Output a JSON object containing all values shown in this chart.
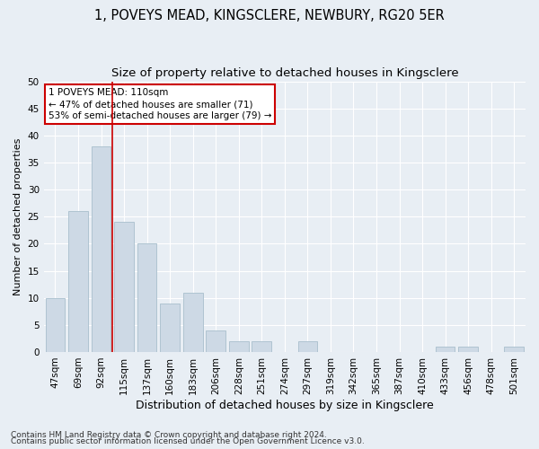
{
  "title1": "1, POVEYS MEAD, KINGSCLERE, NEWBURY, RG20 5ER",
  "title2": "Size of property relative to detached houses in Kingsclere",
  "xlabel": "Distribution of detached houses by size in Kingsclere",
  "ylabel": "Number of detached properties",
  "categories": [
    "47sqm",
    "69sqm",
    "92sqm",
    "115sqm",
    "137sqm",
    "160sqm",
    "183sqm",
    "206sqm",
    "228sqm",
    "251sqm",
    "274sqm",
    "297sqm",
    "319sqm",
    "342sqm",
    "365sqm",
    "387sqm",
    "410sqm",
    "433sqm",
    "456sqm",
    "478sqm",
    "501sqm"
  ],
  "values": [
    10,
    26,
    38,
    24,
    20,
    9,
    11,
    4,
    2,
    2,
    0,
    2,
    0,
    0,
    0,
    0,
    0,
    1,
    1,
    0,
    1
  ],
  "bar_color": "#cdd9e5",
  "bar_edge_color": "#a8becc",
  "vline_x": 2.5,
  "vline_color": "#cc0000",
  "annotation_line1": "1 POVEYS MEAD: 110sqm",
  "annotation_line2": "← 47% of detached houses are smaller (71)",
  "annotation_line3": "53% of semi-detached houses are larger (79) →",
  "annotation_box_color": "white",
  "annotation_box_edge_color": "#cc0000",
  "ylim": [
    0,
    50
  ],
  "yticks": [
    0,
    5,
    10,
    15,
    20,
    25,
    30,
    35,
    40,
    45,
    50
  ],
  "footer1": "Contains HM Land Registry data © Crown copyright and database right 2024.",
  "footer2": "Contains public sector information licensed under the Open Government Licence v3.0.",
  "bg_color": "#e8eef4",
  "plot_bg_color": "#e8eef4",
  "grid_color": "#ffffff",
  "title1_fontsize": 10.5,
  "title2_fontsize": 9.5,
  "xlabel_fontsize": 9,
  "ylabel_fontsize": 8,
  "tick_fontsize": 7.5,
  "footer_fontsize": 6.5
}
